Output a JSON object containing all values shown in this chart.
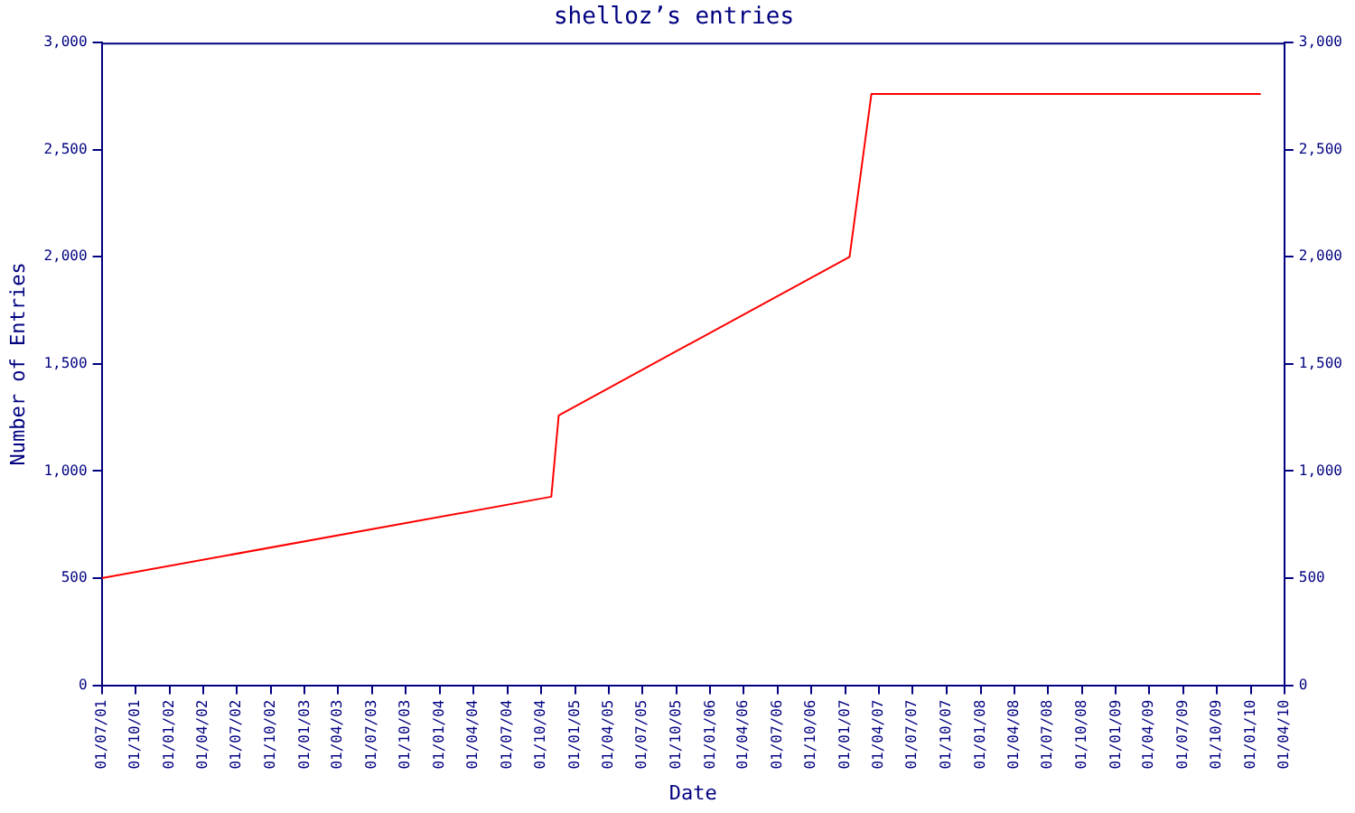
{
  "chart_data": {
    "type": "line",
    "title": "shelloz’s entries",
    "xlabel": "Date",
    "ylabel": "Number of Entries",
    "x": [
      "2001-07-01",
      "2004-10-28",
      "2004-11-17",
      "2007-01-12",
      "2007-03-12",
      "2010-01-27"
    ],
    "series": [
      {
        "color": "#ff0000",
        "values": [
          500,
          880,
          1260,
          2000,
          2760,
          2760
        ]
      }
    ],
    "xlim": [
      "2001-07-01",
      "2010-04-01"
    ],
    "xticks": [
      {
        "value": "2001-07-01",
        "label": "01/07/01"
      },
      {
        "value": "2001-10-01",
        "label": "01/10/01"
      },
      {
        "value": "2002-01-01",
        "label": "01/01/02"
      },
      {
        "value": "2002-04-01",
        "label": "01/04/02"
      },
      {
        "value": "2002-07-01",
        "label": "01/07/02"
      },
      {
        "value": "2002-10-01",
        "label": "01/10/02"
      },
      {
        "value": "2003-01-01",
        "label": "01/01/03"
      },
      {
        "value": "2003-04-01",
        "label": "01/04/03"
      },
      {
        "value": "2003-07-01",
        "label": "01/07/03"
      },
      {
        "value": "2003-10-01",
        "label": "01/10/03"
      },
      {
        "value": "2004-01-01",
        "label": "01/01/04"
      },
      {
        "value": "2004-04-01",
        "label": "01/04/04"
      },
      {
        "value": "2004-07-01",
        "label": "01/07/04"
      },
      {
        "value": "2004-10-01",
        "label": "01/10/04"
      },
      {
        "value": "2005-01-01",
        "label": "01/01/05"
      },
      {
        "value": "2005-04-01",
        "label": "01/04/05"
      },
      {
        "value": "2005-07-01",
        "label": "01/07/05"
      },
      {
        "value": "2005-10-01",
        "label": "01/10/05"
      },
      {
        "value": "2006-01-01",
        "label": "01/01/06"
      },
      {
        "value": "2006-04-01",
        "label": "01/04/06"
      },
      {
        "value": "2006-07-01",
        "label": "01/07/06"
      },
      {
        "value": "2006-10-01",
        "label": "01/10/06"
      },
      {
        "value": "2007-01-01",
        "label": "01/01/07"
      },
      {
        "value": "2007-04-01",
        "label": "01/04/07"
      },
      {
        "value": "2007-07-01",
        "label": "01/07/07"
      },
      {
        "value": "2007-10-01",
        "label": "01/10/07"
      },
      {
        "value": "2008-01-01",
        "label": "01/01/08"
      },
      {
        "value": "2008-04-01",
        "label": "01/04/08"
      },
      {
        "value": "2008-07-01",
        "label": "01/07/08"
      },
      {
        "value": "2008-10-01",
        "label": "01/10/08"
      },
      {
        "value": "2009-01-01",
        "label": "01/01/09"
      },
      {
        "value": "2009-04-01",
        "label": "01/04/09"
      },
      {
        "value": "2009-07-01",
        "label": "01/07/09"
      },
      {
        "value": "2009-10-01",
        "label": "01/10/09"
      },
      {
        "value": "2010-01-01",
        "label": "01/01/10"
      },
      {
        "value": "2010-04-01",
        "label": "01/04/10"
      }
    ],
    "ylim": [
      0,
      3000
    ],
    "yticks": [
      0,
      500,
      {
        "value": 1000,
        "label": "1,000"
      },
      {
        "value": 1500,
        "label": "1,500"
      },
      {
        "value": 2000,
        "label": "2,000"
      },
      {
        "value": 2500,
        "label": "2,500"
      },
      {
        "value": 3000,
        "label": "3,000"
      }
    ],
    "y2lim": [
      0,
      3000
    ],
    "y2ticks": [
      0,
      500,
      {
        "value": 1000,
        "label": "1,000"
      },
      {
        "value": 1500,
        "label": "1,500"
      },
      {
        "value": 2000,
        "label": "2,000"
      },
      {
        "value": 2500,
        "label": "2,500"
      },
      {
        "value": 3000,
        "label": "3,000"
      }
    ],
    "grid": false,
    "legend": false,
    "marker": "none",
    "line_style": "solid"
  }
}
